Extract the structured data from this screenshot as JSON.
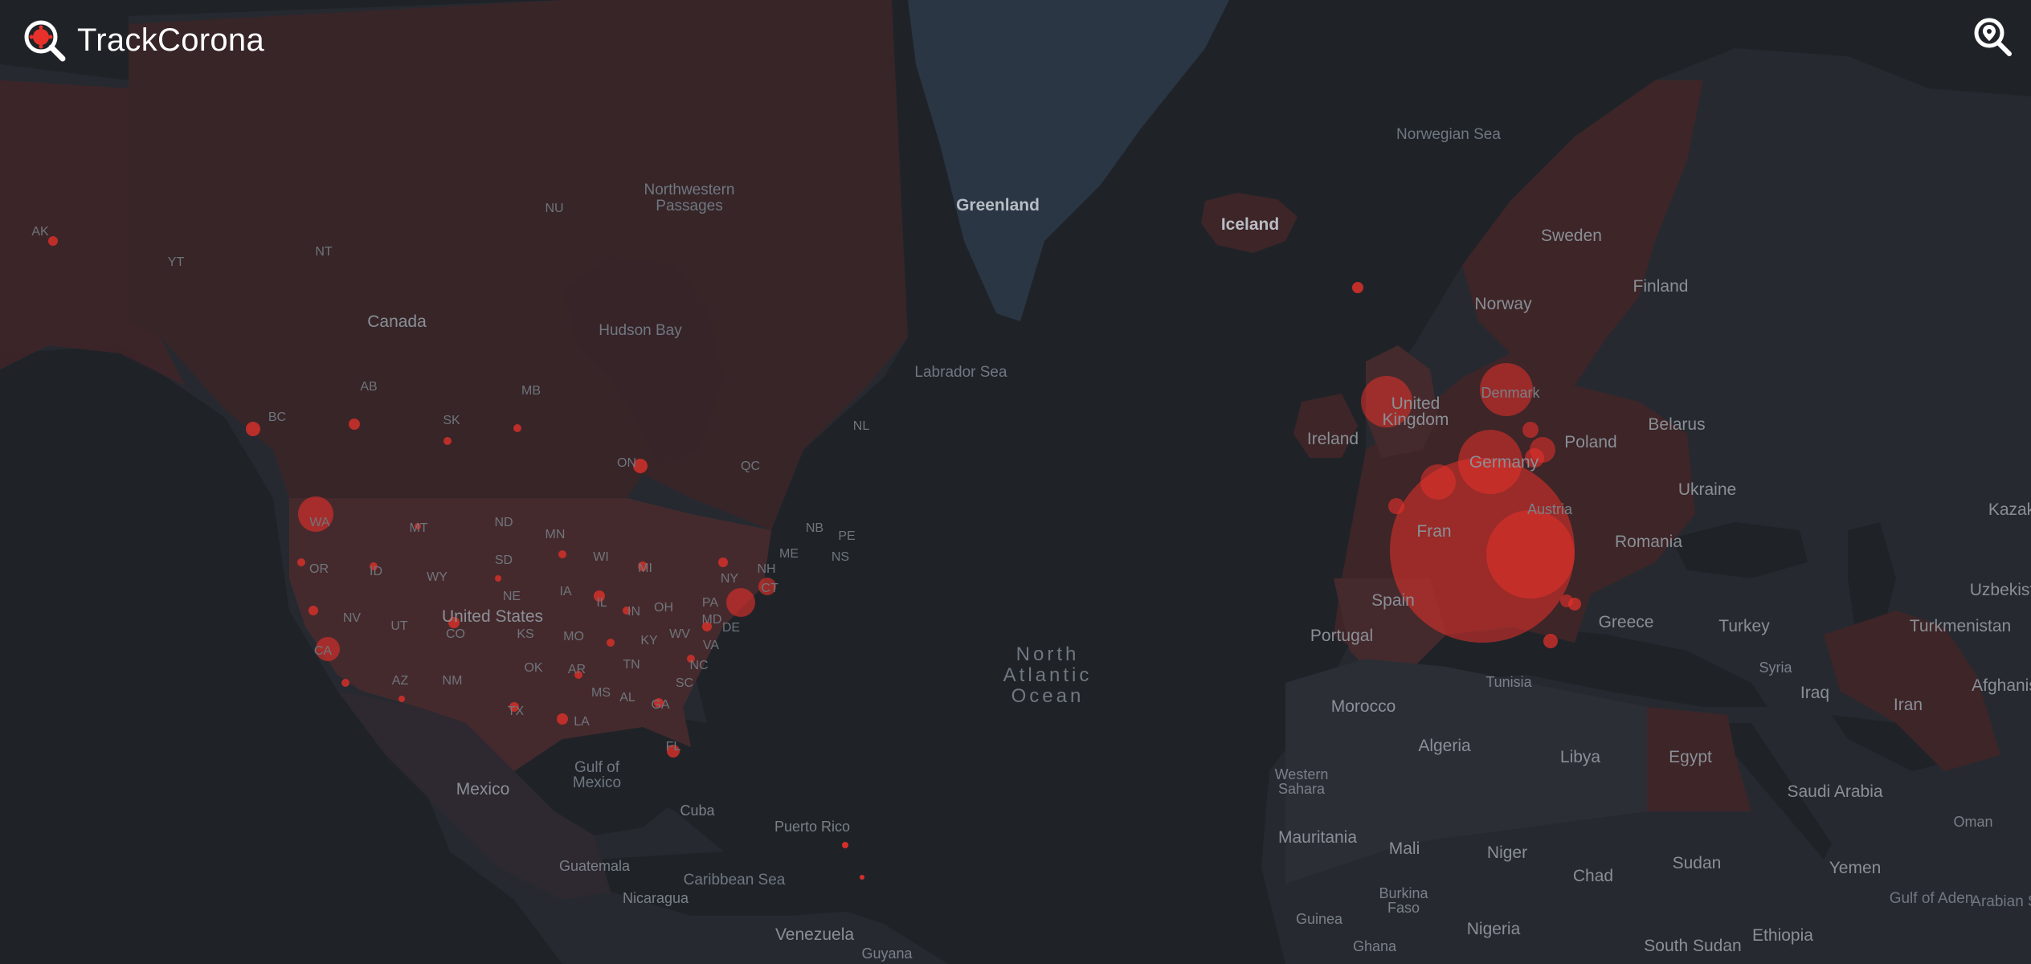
{
  "app": {
    "title": "TrackCorona"
  },
  "header": {
    "search_icon": "map-search-icon",
    "logo_icon": "virus-magnifier-logo-icon"
  },
  "colors": {
    "background": "#1f2328",
    "land": "#262a30",
    "case_region": "#3d2528",
    "case_region_light": "#452a2d",
    "marker": "#e8312a",
    "ice": "#2a3644",
    "text": "#ffffff"
  },
  "map": {
    "water_labels": [
      {
        "id": "norwegian-sea",
        "text": "Norwegian Sea"
      },
      {
        "id": "northwestern-passages-1",
        "text": "Northwestern"
      },
      {
        "id": "northwestern-passages-2",
        "text": "Passages"
      },
      {
        "id": "hudson-bay",
        "text": "Hudson Bay"
      },
      {
        "id": "labrador-sea",
        "text": "Labrador Sea"
      },
      {
        "id": "north-atlantic-1",
        "text": "North"
      },
      {
        "id": "north-atlantic-2",
        "text": "Atlantic"
      },
      {
        "id": "north-atlantic-3",
        "text": "Ocean"
      },
      {
        "id": "gulf-of-mexico-1",
        "text": "Gulf of"
      },
      {
        "id": "gulf-of-mexico-2",
        "text": "Mexico"
      },
      {
        "id": "caribbean-sea",
        "text": "Caribbean Sea"
      },
      {
        "id": "gulf-of-aden",
        "text": "Gulf of Aden"
      },
      {
        "id": "arabian-sea",
        "text": "Arabian S"
      }
    ],
    "island_labels": [
      {
        "id": "greenland",
        "text": "Greenland"
      },
      {
        "id": "iceland",
        "text": "Iceland"
      }
    ],
    "country_labels": [
      {
        "id": "canada",
        "text": "Canada"
      },
      {
        "id": "united-states",
        "text": "United States"
      },
      {
        "id": "mexico",
        "text": "Mexico"
      },
      {
        "id": "cuba",
        "text": "Cuba"
      },
      {
        "id": "puerto-rico",
        "text": "Puerto Rico"
      },
      {
        "id": "guatemala",
        "text": "Guatemala"
      },
      {
        "id": "nicaragua",
        "text": "Nicaragua"
      },
      {
        "id": "venezuela",
        "text": "Venezuela"
      },
      {
        "id": "guyana",
        "text": "Guyana"
      },
      {
        "id": "sweden",
        "text": "Sweden"
      },
      {
        "id": "finland",
        "text": "Finland"
      },
      {
        "id": "norway",
        "text": "Norway"
      },
      {
        "id": "united-kingdom-1",
        "text": "United"
      },
      {
        "id": "united-kingdom-2",
        "text": "Kingdom"
      },
      {
        "id": "denmark",
        "text": "Denmark"
      },
      {
        "id": "ireland",
        "text": "Ireland"
      },
      {
        "id": "germany",
        "text": "Germany"
      },
      {
        "id": "poland",
        "text": "Poland"
      },
      {
        "id": "belarus",
        "text": "Belarus"
      },
      {
        "id": "ukraine",
        "text": "Ukraine"
      },
      {
        "id": "france",
        "text": "Fran"
      },
      {
        "id": "austria",
        "text": "Austria"
      },
      {
        "id": "romania",
        "text": "Romania"
      },
      {
        "id": "spain",
        "text": "Spain"
      },
      {
        "id": "portugal",
        "text": "Portugal"
      },
      {
        "id": "greece",
        "text": "Greece"
      },
      {
        "id": "turkey",
        "text": "Turkey"
      },
      {
        "id": "kazakhstan",
        "text": "Kazak"
      },
      {
        "id": "uzbekistan",
        "text": "Uzbekist"
      },
      {
        "id": "turkmenistan",
        "text": "Turkmenistan"
      },
      {
        "id": "afghanistan",
        "text": "Afghanis"
      },
      {
        "id": "syria",
        "text": "Syria"
      },
      {
        "id": "iraq",
        "text": "Iraq"
      },
      {
        "id": "iran",
        "text": "Iran"
      },
      {
        "id": "tunisia",
        "text": "Tunisia"
      },
      {
        "id": "morocco",
        "text": "Morocco"
      },
      {
        "id": "algeria",
        "text": "Algeria"
      },
      {
        "id": "libya",
        "text": "Libya"
      },
      {
        "id": "egypt",
        "text": "Egypt"
      },
      {
        "id": "western-sahara-1",
        "text": "Western"
      },
      {
        "id": "western-sahara-2",
        "text": "Sahara"
      },
      {
        "id": "saudi-arabia",
        "text": "Saudi Arabia"
      },
      {
        "id": "oman",
        "text": "Oman"
      },
      {
        "id": "mauritania",
        "text": "Mauritania"
      },
      {
        "id": "mali",
        "text": "Mali"
      },
      {
        "id": "niger",
        "text": "Niger"
      },
      {
        "id": "chad",
        "text": "Chad"
      },
      {
        "id": "sudan",
        "text": "Sudan"
      },
      {
        "id": "yemen",
        "text": "Yemen"
      },
      {
        "id": "burkina-faso-1",
        "text": "Burkina"
      },
      {
        "id": "burkina-faso-2",
        "text": "Faso"
      },
      {
        "id": "guinea",
        "text": "Guinea"
      },
      {
        "id": "ghana",
        "text": "Ghana"
      },
      {
        "id": "nigeria",
        "text": "Nigeria"
      },
      {
        "id": "south-sudan",
        "text": "South Sudan"
      },
      {
        "id": "ethiopia",
        "text": "Ethiopia"
      }
    ],
    "state_labels": [
      {
        "id": "ak",
        "text": "AK"
      },
      {
        "id": "yt",
        "text": "YT"
      },
      {
        "id": "nt",
        "text": "NT"
      },
      {
        "id": "nu",
        "text": "NU"
      },
      {
        "id": "bc",
        "text": "BC"
      },
      {
        "id": "ab",
        "text": "AB"
      },
      {
        "id": "sk",
        "text": "SK"
      },
      {
        "id": "mb",
        "text": "MB"
      },
      {
        "id": "on",
        "text": "ON"
      },
      {
        "id": "qc",
        "text": "QC"
      },
      {
        "id": "nl",
        "text": "NL"
      },
      {
        "id": "nb",
        "text": "NB"
      },
      {
        "id": "pe",
        "text": "PE"
      },
      {
        "id": "ns",
        "text": "NS"
      },
      {
        "id": "wa",
        "text": "WA"
      },
      {
        "id": "mt",
        "text": "MT"
      },
      {
        "id": "nd",
        "text": "ND"
      },
      {
        "id": "mn",
        "text": "MN"
      },
      {
        "id": "or",
        "text": "OR"
      },
      {
        "id": "id",
        "text": "ID"
      },
      {
        "id": "wy",
        "text": "WY"
      },
      {
        "id": "sd",
        "text": "SD"
      },
      {
        "id": "wi",
        "text": "WI"
      },
      {
        "id": "mi",
        "text": "MI"
      },
      {
        "id": "ny",
        "text": "NY"
      },
      {
        "id": "nh",
        "text": "NH"
      },
      {
        "id": "me",
        "text": "ME"
      },
      {
        "id": "ne",
        "text": "NE"
      },
      {
        "id": "ia",
        "text": "IA"
      },
      {
        "id": "il",
        "text": "IL"
      },
      {
        "id": "in",
        "text": "IN"
      },
      {
        "id": "oh",
        "text": "OH"
      },
      {
        "id": "pa",
        "text": "PA"
      },
      {
        "id": "ct",
        "text": "CT"
      },
      {
        "id": "nv",
        "text": "NV"
      },
      {
        "id": "ut",
        "text": "UT"
      },
      {
        "id": "co",
        "text": "CO"
      },
      {
        "id": "ks",
        "text": "KS"
      },
      {
        "id": "mo",
        "text": "MO"
      },
      {
        "id": "ky",
        "text": "KY"
      },
      {
        "id": "wv",
        "text": "WV"
      },
      {
        "id": "md",
        "text": "MD"
      },
      {
        "id": "de",
        "text": "DE"
      },
      {
        "id": "va",
        "text": "VA"
      },
      {
        "id": "ca",
        "text": "CA"
      },
      {
        "id": "az",
        "text": "AZ"
      },
      {
        "id": "nm",
        "text": "NM"
      },
      {
        "id": "ok",
        "text": "OK"
      },
      {
        "id": "ar",
        "text": "AR"
      },
      {
        "id": "tn",
        "text": "TN"
      },
      {
        "id": "nc",
        "text": "NC"
      },
      {
        "id": "sc",
        "text": "SC"
      },
      {
        "id": "tx",
        "text": "TX"
      },
      {
        "id": "la",
        "text": "LA"
      },
      {
        "id": "ms",
        "text": "MS"
      },
      {
        "id": "al",
        "text": "AL"
      },
      {
        "id": "ga",
        "text": "GA"
      },
      {
        "id": "fl",
        "text": "FL"
      }
    ]
  }
}
